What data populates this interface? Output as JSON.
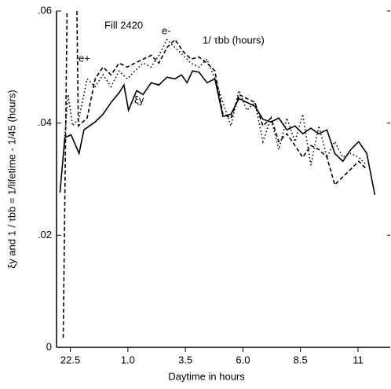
{
  "chart_data": {
    "type": "line",
    "x_label": "Daytime in hours",
    "y_label": "ξy  and   1 / τbb = 1/lifetime - 1/45 (hours)",
    "annotations": [
      "Fill 2420",
      "e-",
      "1/ τbb  (hours)",
      "e+",
      "ξy"
    ],
    "xlim": [
      21.9,
      36.4
    ],
    "ylim": [
      0,
      0.06
    ],
    "xticks": [
      22.5,
      {
        "value": 25,
        "label": "1.0"
      },
      {
        "value": 27.5,
        "label": "3.5"
      },
      {
        "value": 30,
        "label": "6.0"
      },
      {
        "value": 32.5,
        "label": "8.5"
      },
      {
        "value": 35,
        "label": "11"
      }
    ],
    "yticks": [
      0,
      {
        "value": 0.02,
        "label": ".02"
      },
      {
        "value": 0.04,
        "label": ".04"
      },
      {
        "value": 0.06,
        "label": ".06"
      }
    ],
    "series": [
      {
        "name": "ξy",
        "color": "#000",
        "dash": "none",
        "x": [
          22.05,
          22.26,
          22.53,
          22.88,
          23.09,
          23.58,
          23.92,
          24.27,
          24.62,
          24.83,
          25.03,
          25.38,
          25.66,
          26.01,
          26.35,
          26.7,
          27.05,
          27.33,
          27.57,
          27.81,
          28.09,
          28.44,
          28.78,
          29.13,
          29.48,
          29.83,
          30.17,
          30.52,
          30.87,
          31.22,
          31.56,
          31.91,
          32.26,
          32.6,
          32.95,
          33.3,
          33.65,
          33.99,
          34.34,
          34.69,
          35.03,
          35.38,
          35.73
        ],
        "values": [
          0.0276,
          0.0374,
          0.0379,
          0.0346,
          0.0388,
          0.0402,
          0.0416,
          0.0437,
          0.0454,
          0.0468,
          0.0423,
          0.0458,
          0.0451,
          0.0472,
          0.0468,
          0.0482,
          0.0479,
          0.0486,
          0.0472,
          0.0493,
          0.0491,
          0.0472,
          0.0479,
          0.0412,
          0.0416,
          0.0444,
          0.0437,
          0.043,
          0.0407,
          0.0402,
          0.0409,
          0.0388,
          0.0395,
          0.0381,
          0.0391,
          0.0381,
          0.0388,
          0.0346,
          0.0332,
          0.0353,
          0.0367,
          0.0346,
          0.0272
        ]
      },
      {
        "name": "e+",
        "color": "#000",
        "dash": "5,3",
        "x": [
          22.19,
          22.4,
          22.74,
          22.85,
          23.23,
          23.58,
          23.92,
          24.27,
          24.62,
          24.97,
          25.31,
          25.66,
          26.01,
          26.35,
          26.7,
          27.05,
          27.4,
          27.74,
          28.09,
          28.44,
          28.78,
          29.13,
          29.48,
          29.83,
          30.17,
          30.52,
          30.87,
          31.22,
          31.56,
          31.91,
          32.26,
          32.6,
          32.95,
          33.3,
          33.65,
          33.99,
          34.34,
          34.69,
          35.03,
          35.38
        ],
        "values": [
          0.0017,
          0.075,
          0.075,
          0.0395,
          0.0409,
          0.0479,
          0.05,
          0.0486,
          0.0507,
          0.05,
          0.0507,
          0.0514,
          0.0521,
          0.0507,
          0.0535,
          0.0549,
          0.0528,
          0.0514,
          0.0518,
          0.0507,
          0.0493,
          0.0416,
          0.0409,
          0.0451,
          0.0444,
          0.0437,
          0.0395,
          0.0409,
          0.0367,
          0.0381,
          0.036,
          0.0339,
          0.036,
          0.0353,
          0.0339,
          0.029,
          0.0304,
          0.0318,
          0.0332,
          0.0318
        ]
      },
      {
        "name": "e-",
        "color": "#000",
        "dash": "1.5,3",
        "x": [
          22.19,
          22.4,
          22.6,
          22.88,
          23.23,
          23.58,
          23.92,
          24.27,
          24.62,
          24.97,
          25.31,
          25.66,
          26.01,
          26.35,
          26.7,
          27.05,
          27.4,
          27.74,
          28.09,
          28.44,
          28.78,
          29.13,
          29.48,
          29.83,
          30.17,
          30.52,
          30.87,
          31.22,
          31.56,
          31.91,
          32.26,
          32.6,
          32.95,
          33.3,
          33.65,
          33.99,
          34.34,
          34.69,
          35.03,
          35.38
        ],
        "values": [
          0.0339,
          0.0451,
          0.0395,
          0.0409,
          0.0479,
          0.0465,
          0.0486,
          0.0465,
          0.0493,
          0.0479,
          0.0493,
          0.0507,
          0.05,
          0.0521,
          0.0549,
          0.0535,
          0.0521,
          0.0507,
          0.05,
          0.0514,
          0.0479,
          0.0437,
          0.0395,
          0.0458,
          0.0423,
          0.0437,
          0.0367,
          0.0409,
          0.0353,
          0.0409,
          0.0367,
          0.0416,
          0.0325,
          0.0395,
          0.0339,
          0.0367,
          0.0339,
          0.0346,
          0.0339,
          0.0325
        ]
      }
    ]
  }
}
